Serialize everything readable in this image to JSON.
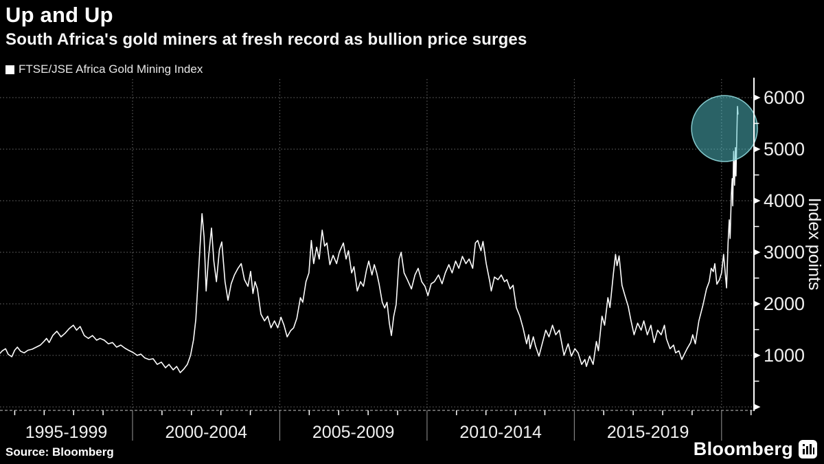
{
  "header": {
    "title": "Up and Up",
    "subtitle": "South Africa's gold miners at fresh record as bullion price surges"
  },
  "legend": {
    "label": "FTSE/JSE Africa Gold Mining Index",
    "marker_color": "#ffffff"
  },
  "footer": {
    "source": "Source: Bloomberg",
    "brand": "Bloomberg"
  },
  "colors": {
    "background": "#000000",
    "line": "#ffffff",
    "grid": "#8a8a8a",
    "axis": "#ffffff",
    "x_axis_dash": "#c8c8c8",
    "separator": "#9a9a9a",
    "tick_label": "#f0f0f0",
    "highlight_fill": "#54C3CC",
    "highlight_stroke": "#8FD8DC"
  },
  "chart_data": {
    "type": "line",
    "title": "Up and Up",
    "series_name": "FTSE/JSE Africa Gold Mining Index",
    "ylabel": "Index points",
    "xlabel": "",
    "grid": "dotted",
    "legend_position": "top-left",
    "x_tick_labels": [
      "1995-1999",
      "2000-2004",
      "2005-2009",
      "2010-2014",
      "2015-2019"
    ],
    "x_separator_years": [
      2000,
      2005,
      2010,
      2015,
      2020
    ],
    "x_minor_tick_years": [
      1996,
      1997,
      1998,
      1999,
      2001,
      2002,
      2003,
      2004,
      2006,
      2007,
      2008,
      2009,
      2011,
      2012,
      2013,
      2014,
      2016,
      2017,
      2018,
      2019,
      2021
    ],
    "x_range_years": [
      1995.5,
      2021.1
    ],
    "y_range": [
      0,
      6360
    ],
    "y_major_ticks": [
      0,
      1000,
      2000,
      3000,
      4000,
      5000,
      6000
    ],
    "y_labeled_ticks": [
      1000,
      2000,
      3000,
      4000,
      5000,
      6000
    ],
    "y_minor_ticks": [
      500,
      1500,
      2500,
      3500,
      4500,
      5500
    ],
    "highlight_circle": {
      "center_year": 2020.1,
      "center_value": 5400,
      "radius_px": 48
    },
    "points": [
      [
        1995.5,
        1040
      ],
      [
        1995.58,
        1090
      ],
      [
        1995.69,
        1130
      ],
      [
        1995.78,
        1020
      ],
      [
        1995.9,
        975
      ],
      [
        1996.0,
        1100
      ],
      [
        1996.09,
        1160
      ],
      [
        1996.2,
        1080
      ],
      [
        1996.32,
        1050
      ],
      [
        1996.45,
        1100
      ],
      [
        1996.59,
        1120
      ],
      [
        1996.73,
        1160
      ],
      [
        1996.87,
        1200
      ],
      [
        1996.99,
        1270
      ],
      [
        1997.08,
        1330
      ],
      [
        1997.17,
        1250
      ],
      [
        1997.29,
        1385
      ],
      [
        1997.43,
        1470
      ],
      [
        1997.57,
        1360
      ],
      [
        1997.71,
        1430
      ],
      [
        1997.85,
        1520
      ],
      [
        1997.99,
        1585
      ],
      [
        1998.1,
        1490
      ],
      [
        1998.22,
        1560
      ],
      [
        1998.36,
        1385
      ],
      [
        1998.5,
        1330
      ],
      [
        1998.64,
        1385
      ],
      [
        1998.78,
        1295
      ],
      [
        1998.9,
        1330
      ],
      [
        1999.04,
        1295
      ],
      [
        1999.18,
        1225
      ],
      [
        1999.32,
        1250
      ],
      [
        1999.46,
        1160
      ],
      [
        1999.6,
        1200
      ],
      [
        1999.74,
        1140
      ],
      [
        1999.88,
        1095
      ],
      [
        2000.02,
        1055
      ],
      [
        2000.16,
        1000
      ],
      [
        2000.28,
        1025
      ],
      [
        2000.42,
        950
      ],
      [
        2000.56,
        920
      ],
      [
        2000.7,
        935
      ],
      [
        2000.84,
        825
      ],
      [
        2000.98,
        870
      ],
      [
        2001.12,
        760
      ],
      [
        2001.24,
        825
      ],
      [
        2001.38,
        720
      ],
      [
        2001.5,
        785
      ],
      [
        2001.62,
        665
      ],
      [
        2001.74,
        735
      ],
      [
        2001.86,
        825
      ],
      [
        2001.97,
        1000
      ],
      [
        2002.07,
        1300
      ],
      [
        2002.15,
        1700
      ],
      [
        2002.22,
        2400
      ],
      [
        2002.3,
        3200
      ],
      [
        2002.36,
        3750
      ],
      [
        2002.43,
        3300
      ],
      [
        2002.5,
        2250
      ],
      [
        2002.58,
        2900
      ],
      [
        2002.68,
        3470
      ],
      [
        2002.76,
        2830
      ],
      [
        2002.85,
        2430
      ],
      [
        2002.95,
        3050
      ],
      [
        2003.03,
        3200
      ],
      [
        2003.14,
        2430
      ],
      [
        2003.24,
        2070
      ],
      [
        2003.35,
        2390
      ],
      [
        2003.46,
        2560
      ],
      [
        2003.58,
        2690
      ],
      [
        2003.69,
        2780
      ],
      [
        2003.8,
        2470
      ],
      [
        2003.92,
        2340
      ],
      [
        2004.01,
        2630
      ],
      [
        2004.09,
        2200
      ],
      [
        2004.16,
        2430
      ],
      [
        2004.24,
        2290
      ],
      [
        2004.36,
        1800
      ],
      [
        2004.48,
        1670
      ],
      [
        2004.59,
        1760
      ],
      [
        2004.7,
        1535
      ],
      [
        2004.82,
        1670
      ],
      [
        2004.93,
        1535
      ],
      [
        2005.04,
        1740
      ],
      [
        2005.14,
        1590
      ],
      [
        2005.25,
        1360
      ],
      [
        2005.37,
        1480
      ],
      [
        2005.47,
        1535
      ],
      [
        2005.58,
        1720
      ],
      [
        2005.7,
        2120
      ],
      [
        2005.78,
        2030
      ],
      [
        2005.89,
        2430
      ],
      [
        2005.99,
        2600
      ],
      [
        2006.07,
        3230
      ],
      [
        2006.15,
        2780
      ],
      [
        2006.25,
        3100
      ],
      [
        2006.34,
        2870
      ],
      [
        2006.44,
        3430
      ],
      [
        2006.52,
        3120
      ],
      [
        2006.6,
        3180
      ],
      [
        2006.7,
        2760
      ],
      [
        2006.81,
        2940
      ],
      [
        2006.93,
        2780
      ],
      [
        2007.02,
        3000
      ],
      [
        2007.16,
        3180
      ],
      [
        2007.25,
        2870
      ],
      [
        2007.33,
        3030
      ],
      [
        2007.44,
        2600
      ],
      [
        2007.52,
        2720
      ],
      [
        2007.63,
        2250
      ],
      [
        2007.74,
        2430
      ],
      [
        2007.84,
        2340
      ],
      [
        2007.94,
        2650
      ],
      [
        2008.02,
        2830
      ],
      [
        2008.13,
        2560
      ],
      [
        2008.21,
        2760
      ],
      [
        2008.29,
        2600
      ],
      [
        2008.37,
        2390
      ],
      [
        2008.48,
        2030
      ],
      [
        2008.56,
        1920
      ],
      [
        2008.64,
        2030
      ],
      [
        2008.72,
        1625
      ],
      [
        2008.79,
        1385
      ],
      [
        2008.87,
        1760
      ],
      [
        2008.95,
        1985
      ],
      [
        2009.05,
        2870
      ],
      [
        2009.12,
        3000
      ],
      [
        2009.22,
        2600
      ],
      [
        2009.33,
        2470
      ],
      [
        2009.47,
        2290
      ],
      [
        2009.59,
        2560
      ],
      [
        2009.7,
        2690
      ],
      [
        2009.82,
        2430
      ],
      [
        2009.93,
        2340
      ],
      [
        2010.03,
        2160
      ],
      [
        2010.14,
        2390
      ],
      [
        2010.25,
        2430
      ],
      [
        2010.39,
        2560
      ],
      [
        2010.51,
        2390
      ],
      [
        2010.62,
        2600
      ],
      [
        2010.74,
        2760
      ],
      [
        2010.85,
        2600
      ],
      [
        2010.97,
        2830
      ],
      [
        2011.08,
        2690
      ],
      [
        2011.2,
        2920
      ],
      [
        2011.32,
        2780
      ],
      [
        2011.43,
        2870
      ],
      [
        2011.55,
        2690
      ],
      [
        2011.64,
        3180
      ],
      [
        2011.72,
        3230
      ],
      [
        2011.83,
        3030
      ],
      [
        2011.9,
        3210
      ],
      [
        2012.01,
        2780
      ],
      [
        2012.13,
        2430
      ],
      [
        2012.18,
        2250
      ],
      [
        2012.29,
        2520
      ],
      [
        2012.41,
        2470
      ],
      [
        2012.52,
        2560
      ],
      [
        2012.63,
        2430
      ],
      [
        2012.71,
        2470
      ],
      [
        2012.82,
        2290
      ],
      [
        2012.92,
        2360
      ],
      [
        2013.03,
        1930
      ],
      [
        2013.15,
        1760
      ],
      [
        2013.26,
        1535
      ],
      [
        2013.38,
        1225
      ],
      [
        2013.45,
        1400
      ],
      [
        2013.5,
        1130
      ],
      [
        2013.61,
        1360
      ],
      [
        2013.68,
        1185
      ],
      [
        2013.8,
        985
      ],
      [
        2013.91,
        1225
      ],
      [
        2014.03,
        1490
      ],
      [
        2014.14,
        1360
      ],
      [
        2014.26,
        1585
      ],
      [
        2014.37,
        1400
      ],
      [
        2014.49,
        1490
      ],
      [
        2014.65,
        1000
      ],
      [
        2014.79,
        1225
      ],
      [
        2014.9,
        985
      ],
      [
        2015.02,
        1130
      ],
      [
        2015.13,
        1050
      ],
      [
        2015.25,
        825
      ],
      [
        2015.36,
        920
      ],
      [
        2015.41,
        785
      ],
      [
        2015.52,
        985
      ],
      [
        2015.64,
        825
      ],
      [
        2015.75,
        1270
      ],
      [
        2015.82,
        1090
      ],
      [
        2015.94,
        1760
      ],
      [
        2016.03,
        1585
      ],
      [
        2016.14,
        2120
      ],
      [
        2016.21,
        1930
      ],
      [
        2016.33,
        2600
      ],
      [
        2016.4,
        2960
      ],
      [
        2016.45,
        2740
      ],
      [
        2016.52,
        2930
      ],
      [
        2016.62,
        2360
      ],
      [
        2016.72,
        2160
      ],
      [
        2016.83,
        1950
      ],
      [
        2016.92,
        1690
      ],
      [
        2017.03,
        1400
      ],
      [
        2017.15,
        1625
      ],
      [
        2017.27,
        1490
      ],
      [
        2017.36,
        1670
      ],
      [
        2017.48,
        1400
      ],
      [
        2017.6,
        1585
      ],
      [
        2017.71,
        1250
      ],
      [
        2017.83,
        1490
      ],
      [
        2017.95,
        1400
      ],
      [
        2018.06,
        1585
      ],
      [
        2018.13,
        1320
      ],
      [
        2018.25,
        1130
      ],
      [
        2018.37,
        1200
      ],
      [
        2018.44,
        1050
      ],
      [
        2018.55,
        1090
      ],
      [
        2018.65,
        920
      ],
      [
        2018.76,
        1050
      ],
      [
        2018.83,
        1130
      ],
      [
        2018.95,
        1250
      ],
      [
        2019.02,
        1400
      ],
      [
        2019.11,
        1225
      ],
      [
        2019.23,
        1670
      ],
      [
        2019.37,
        1980
      ],
      [
        2019.49,
        2290
      ],
      [
        2019.58,
        2430
      ],
      [
        2019.65,
        2690
      ],
      [
        2019.72,
        2625
      ],
      [
        2019.77,
        2780
      ],
      [
        2019.84,
        2380
      ],
      [
        2019.93,
        2470
      ],
      [
        2020.0,
        2600
      ],
      [
        2020.07,
        2960
      ],
      [
        2020.17,
        2310
      ],
      [
        2020.22,
        3180
      ],
      [
        2020.26,
        3630
      ],
      [
        2020.29,
        3270
      ],
      [
        2020.33,
        4100
      ],
      [
        2020.36,
        4430
      ],
      [
        2020.38,
        3900
      ],
      [
        2020.41,
        4960
      ],
      [
        2020.44,
        4300
      ],
      [
        2020.47,
        5030
      ],
      [
        2020.49,
        4480
      ],
      [
        2020.52,
        5300
      ],
      [
        2020.54,
        5830
      ],
      [
        2020.56,
        5680
      ]
    ]
  }
}
